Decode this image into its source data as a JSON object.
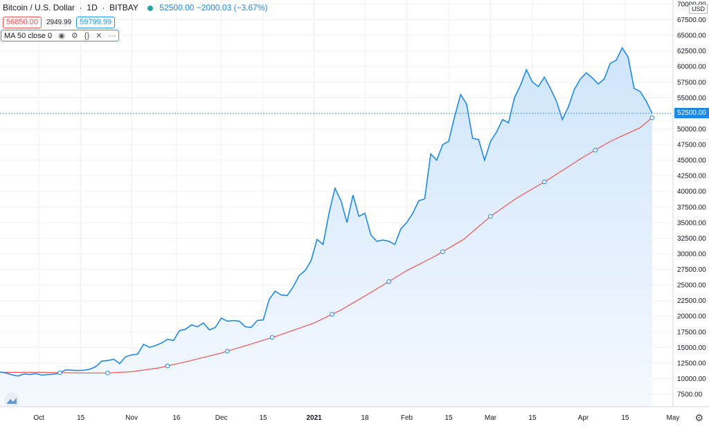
{
  "header": {
    "symbol": "Bitcoin / U.S. Dollar",
    "interval": "1D",
    "exchange": "BITBAY",
    "last_price": "52500.00",
    "change": "−2000.03 (−3.67%)",
    "status_color": "#26a69a"
  },
  "quote": {
    "sell": "56850.00",
    "spread": "2949.99",
    "buy": "59799.99"
  },
  "indicator": {
    "label": "MA 50 close 0",
    "icons": [
      "eye-icon",
      "gear-icon",
      "braces-icon",
      "close-icon",
      "more-icon"
    ]
  },
  "axis": {
    "currency": "USD",
    "current_price_tag": "52500.00"
  },
  "colors": {
    "price_line": "#1e88e5",
    "ma_line": "#ef5350",
    "area_top": "#cfe5fb",
    "area_bottom": "#f5f9ff",
    "grid": "#eef0f3"
  },
  "chart_data": {
    "type": "area",
    "title": "Bitcoin / U.S. Dollar 1D BITBAY",
    "y_ticks": [
      7500,
      10000,
      12500,
      15000,
      17500,
      20000,
      22500,
      25000,
      27500,
      30000,
      32500,
      35000,
      37500,
      40000,
      42500,
      45000,
      47500,
      50000,
      52500,
      55000,
      57500,
      60000,
      62500,
      65000,
      67500,
      70000
    ],
    "y_tick_labels": [
      "7500.00",
      "10000.00",
      "12500.00",
      "15000.00",
      "17500.00",
      "20000.00",
      "22500.00",
      "25000.00",
      "27500.00",
      "30000.00",
      "32500.00",
      "35000.00",
      "37500.00",
      "40000.00",
      "42500.00",
      "45000.00",
      "47500.00",
      "50000.00",
      "52500.00",
      "55000.00",
      "57500.00",
      "60000.00",
      "62500.00",
      "65000.00",
      "67500.00",
      "70000.00"
    ],
    "ylim": [
      5000,
      70000
    ],
    "x_ticks": [
      {
        "label": "Oct",
        "date": "2020-10-01"
      },
      {
        "label": "15",
        "date": "2020-10-15"
      },
      {
        "label": "Nov",
        "date": "2020-11-01"
      },
      {
        "label": "16",
        "date": "2020-11-16"
      },
      {
        "label": "Dec",
        "date": "2020-12-01"
      },
      {
        "label": "15",
        "date": "2020-12-15"
      },
      {
        "label": "2021",
        "date": "2021-01-01",
        "bold": true
      },
      {
        "label": "18",
        "date": "2021-01-18"
      },
      {
        "label": "Feb",
        "date": "2021-02-01"
      },
      {
        "label": "15",
        "date": "2021-02-15"
      },
      {
        "label": "Mar",
        "date": "2021-03-01"
      },
      {
        "label": "15",
        "date": "2021-03-15"
      },
      {
        "label": "Apr",
        "date": "2021-04-01"
      },
      {
        "label": "15",
        "date": "2021-04-15"
      },
      {
        "label": "May",
        "date": "2021-05-01"
      }
    ],
    "xlim": [
      "2020-09-18",
      "2021-05-01"
    ],
    "grid": true,
    "series": [
      {
        "name": "Bitcoin / U.S. Dollar",
        "kind": "price",
        "x": [
          "2020-09-18",
          "2020-09-20",
          "2020-09-22",
          "2020-09-24",
          "2020-09-26",
          "2020-09-28",
          "2020-09-30",
          "2020-10-02",
          "2020-10-04",
          "2020-10-06",
          "2020-10-08",
          "2020-10-10",
          "2020-10-12",
          "2020-10-14",
          "2020-10-16",
          "2020-10-18",
          "2020-10-20",
          "2020-10-22",
          "2020-10-24",
          "2020-10-26",
          "2020-10-28",
          "2020-10-30",
          "2020-11-01",
          "2020-11-03",
          "2020-11-05",
          "2020-11-07",
          "2020-11-09",
          "2020-11-11",
          "2020-11-13",
          "2020-11-15",
          "2020-11-17",
          "2020-11-19",
          "2020-11-21",
          "2020-11-23",
          "2020-11-25",
          "2020-11-27",
          "2020-11-29",
          "2020-12-01",
          "2020-12-03",
          "2020-12-05",
          "2020-12-07",
          "2020-12-09",
          "2020-12-11",
          "2020-12-13",
          "2020-12-15",
          "2020-12-17",
          "2020-12-19",
          "2020-12-21",
          "2020-12-23",
          "2020-12-25",
          "2020-12-27",
          "2020-12-29",
          "2020-12-31",
          "2021-01-02",
          "2021-01-04",
          "2021-01-06",
          "2021-01-08",
          "2021-01-10",
          "2021-01-12",
          "2021-01-14",
          "2021-01-16",
          "2021-01-18",
          "2021-01-20",
          "2021-01-22",
          "2021-01-24",
          "2021-01-26",
          "2021-01-28",
          "2021-01-30",
          "2021-02-01",
          "2021-02-03",
          "2021-02-05",
          "2021-02-07",
          "2021-02-09",
          "2021-02-11",
          "2021-02-13",
          "2021-02-15",
          "2021-02-17",
          "2021-02-19",
          "2021-02-21",
          "2021-02-23",
          "2021-02-25",
          "2021-02-27",
          "2021-03-01",
          "2021-03-03",
          "2021-03-05",
          "2021-03-07",
          "2021-03-09",
          "2021-03-11",
          "2021-03-13",
          "2021-03-15",
          "2021-03-17",
          "2021-03-19",
          "2021-03-21",
          "2021-03-23",
          "2021-03-25",
          "2021-03-27",
          "2021-03-29",
          "2021-03-31",
          "2021-04-02",
          "2021-04-04",
          "2021-04-06",
          "2021-04-08",
          "2021-04-10",
          "2021-04-12",
          "2021-04-14",
          "2021-04-16",
          "2021-04-18",
          "2021-04-20",
          "2021-04-22",
          "2021-04-24"
        ],
        "values": [
          11050,
          10900,
          10600,
          10400,
          10750,
          10650,
          10800,
          10550,
          10650,
          10700,
          10900,
          11400,
          11350,
          11300,
          11350,
          11500,
          11900,
          12800,
          12900,
          13100,
          12400,
          13500,
          13800,
          13900,
          15500,
          15000,
          15300,
          15700,
          16300,
          16100,
          17700,
          17900,
          18600,
          18300,
          18900,
          17800,
          18200,
          19700,
          19200,
          19300,
          19200,
          18300,
          18200,
          19300,
          19400,
          22700,
          24000,
          23400,
          23300,
          24700,
          26500,
          27300,
          28900,
          32300,
          31500,
          36500,
          40500,
          38500,
          35000,
          39400,
          36000,
          36500,
          33000,
          32000,
          32200,
          32000,
          31500,
          34000,
          35000,
          36500,
          38500,
          38800,
          46000,
          45000,
          47500,
          48000,
          52000,
          55500,
          54000,
          48500,
          48300,
          45000,
          48000,
          49500,
          51500,
          51000,
          55000,
          57000,
          59500,
          57500,
          56800,
          58300,
          56500,
          54500,
          51500,
          53500,
          56300,
          58000,
          59000,
          58200,
          57200,
          58000,
          60500,
          61000,
          63000,
          61500,
          56500,
          56000,
          54500,
          52500
        ]
      },
      {
        "name": "MA 50 close 0",
        "kind": "ma",
        "x": [
          "2020-09-18",
          "2020-10-01",
          "2020-10-15",
          "2020-10-24",
          "2020-11-01",
          "2020-11-10",
          "2020-11-20",
          "2020-12-01",
          "2020-12-10",
          "2020-12-20",
          "2021-01-01",
          "2021-01-10",
          "2021-01-20",
          "2021-02-01",
          "2021-02-10",
          "2021-02-20",
          "2021-03-01",
          "2021-03-10",
          "2021-03-20",
          "2021-04-01",
          "2021-04-10",
          "2021-04-20",
          "2021-04-24"
        ],
        "values": [
          11000,
          11000,
          10900,
          10900,
          11100,
          11700,
          12800,
          14100,
          15400,
          16900,
          18900,
          21000,
          23800,
          27300,
          29500,
          32300,
          36000,
          39000,
          41800,
          45500,
          48000,
          50200,
          51800
        ]
      }
    ],
    "ma_markers": [
      "2020-10-08",
      "2020-10-24",
      "2020-11-13",
      "2020-12-03",
      "2020-12-18",
      "2021-01-07",
      "2021-01-26",
      "2021-02-13",
      "2021-03-01",
      "2021-03-19",
      "2021-04-05",
      "2021-04-24"
    ]
  }
}
